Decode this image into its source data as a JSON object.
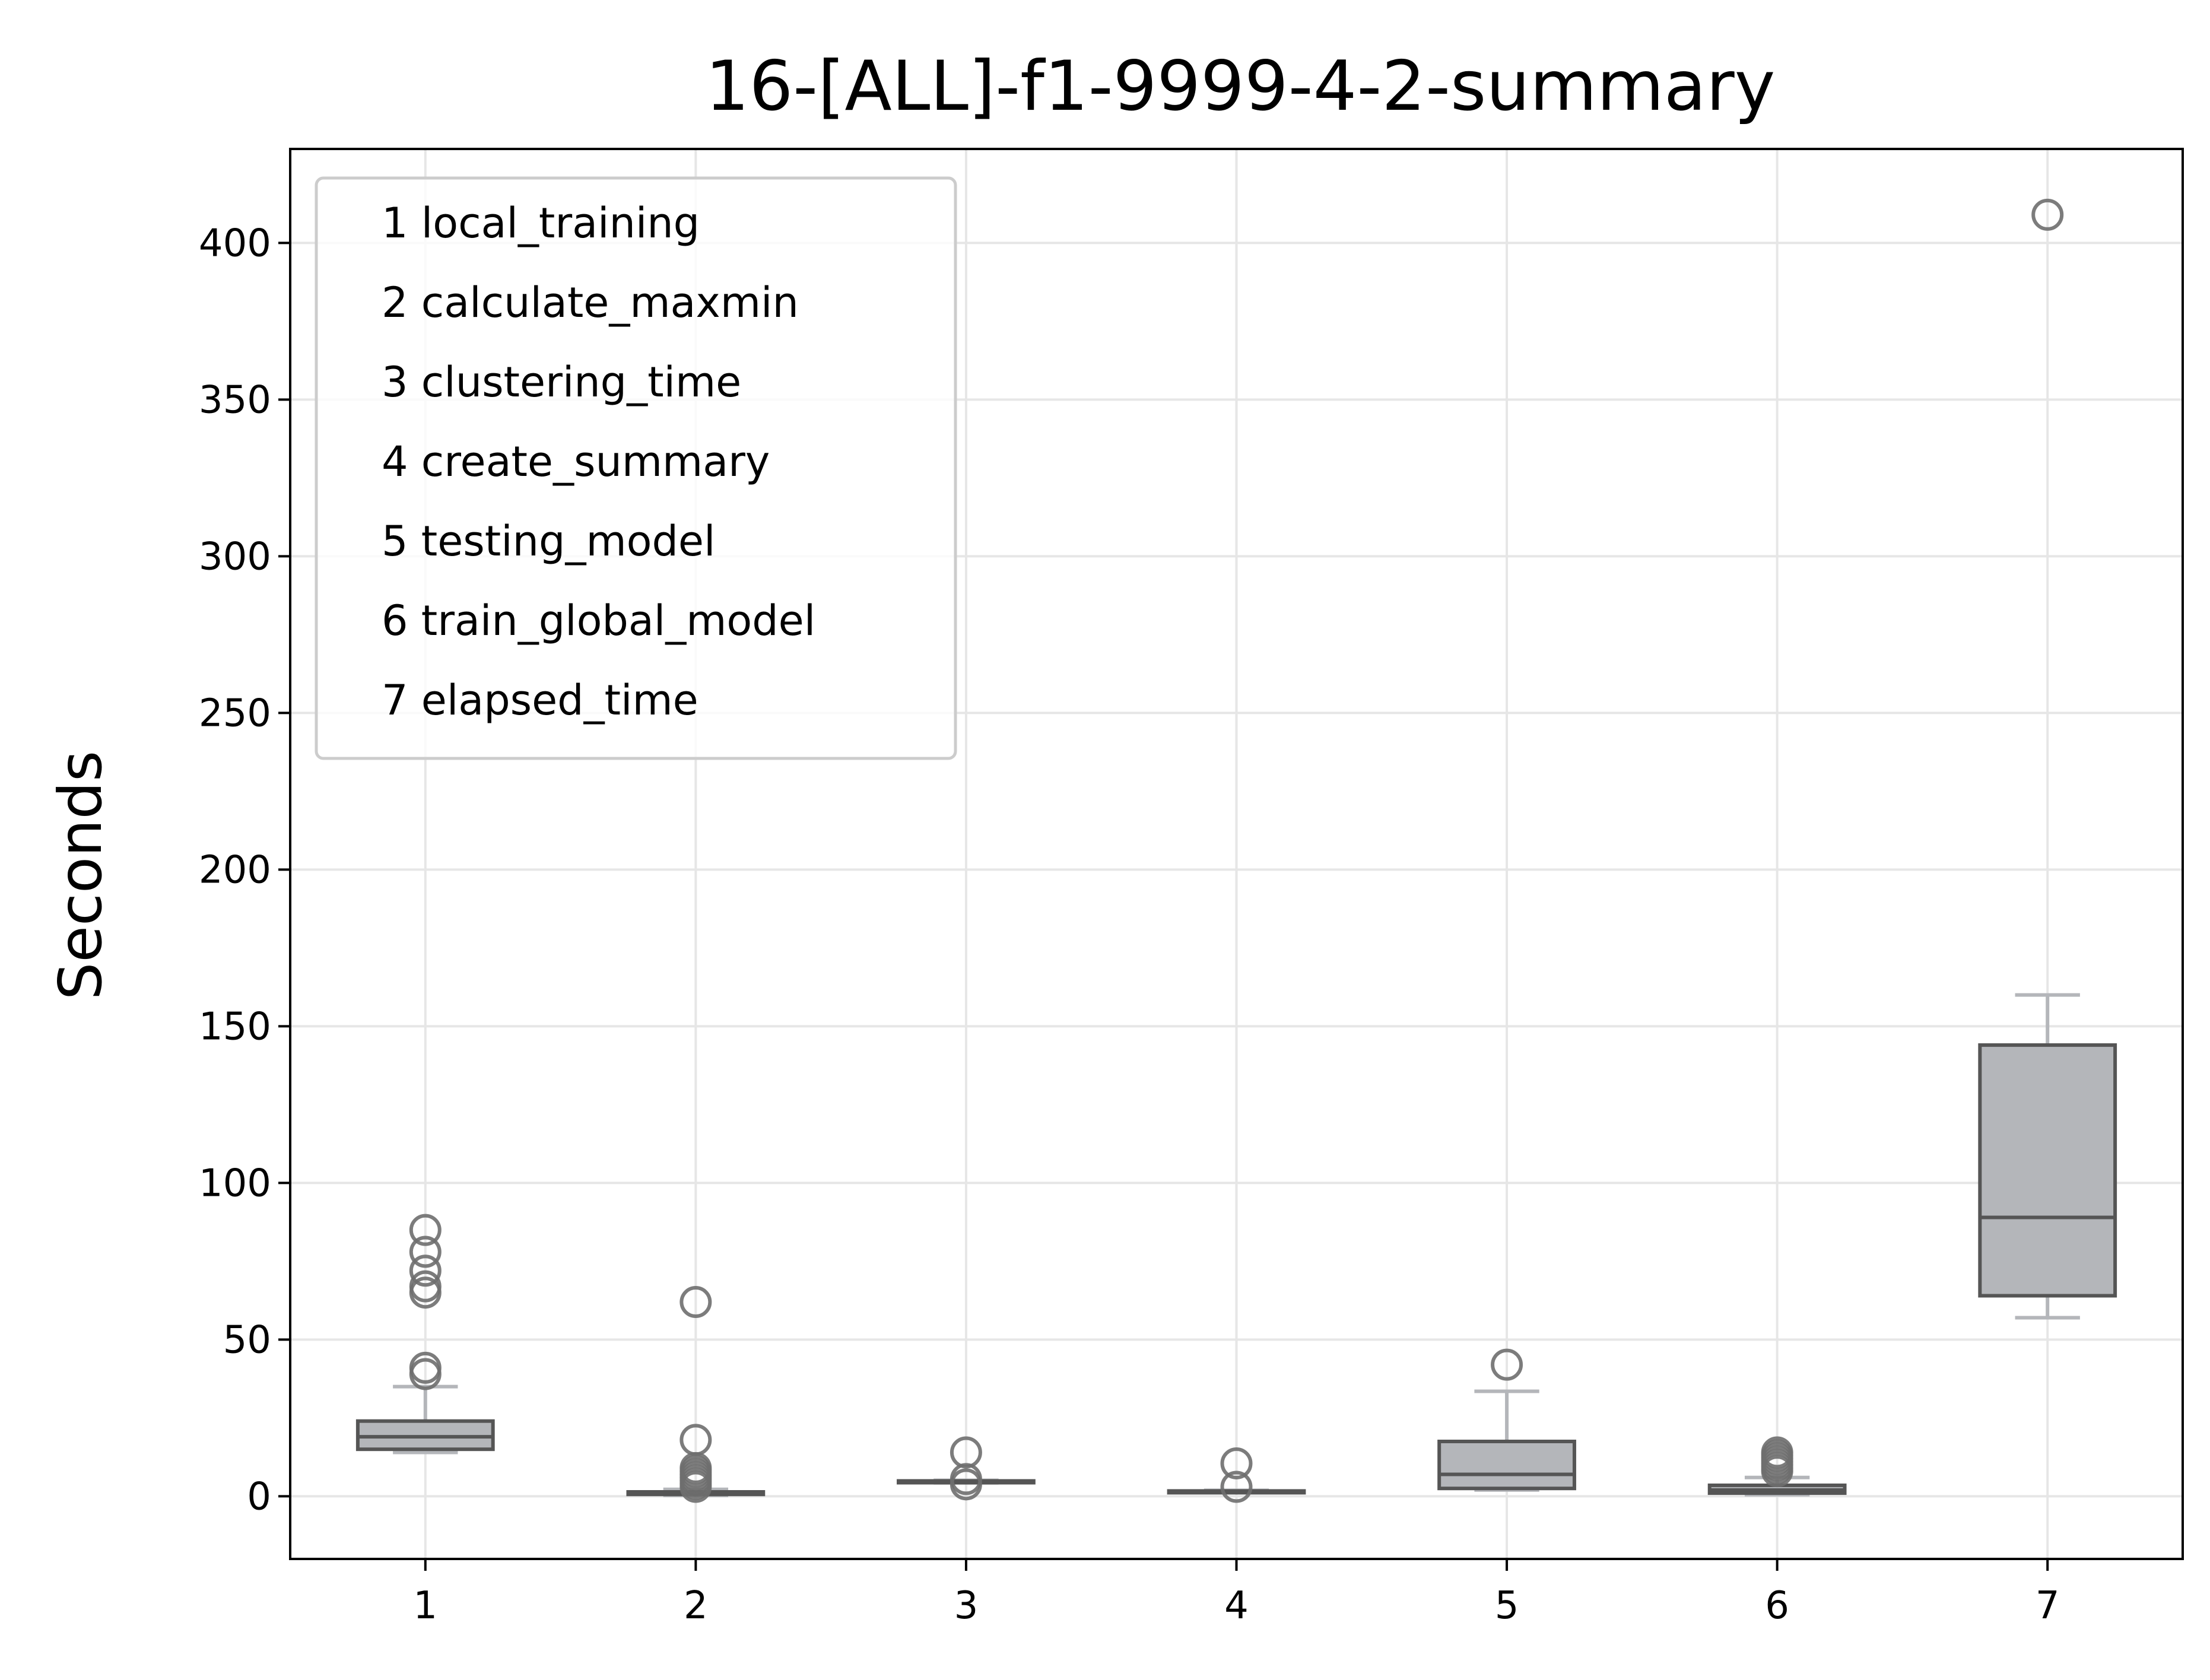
{
  "chart_data": {
    "type": "box",
    "title": "16-[ALL]-f1-9999-4-2-summary",
    "xlabel": "",
    "ylabel": "Seconds",
    "ylim": [
      -20,
      430
    ],
    "xlim": [
      0.5,
      7.5
    ],
    "yticks": [
      0,
      50,
      100,
      150,
      200,
      250,
      300,
      350,
      400
    ],
    "grid": true,
    "legend_position": "top-left",
    "legend": [
      "1 local_training",
      "2 calculate_maxmin",
      "3 clustering_time",
      "4 create_summary",
      "5 testing_model",
      "6 train_global_model",
      "7 elapsed_time"
    ],
    "colors": {
      "box_fill": "#b4b6ba",
      "box_edge": "#555555",
      "whisker": "#b4b6ba",
      "outlier_edge": "#6e6e6e",
      "grid": "#e6e6e6"
    },
    "categories": [
      "1",
      "2",
      "3",
      "4",
      "5",
      "6",
      "7"
    ],
    "boxes": [
      {
        "category": "1",
        "whislo": 14,
        "q1": 15,
        "median": 19,
        "q3": 24,
        "whishi": 35,
        "outliers": [
          39,
          41,
          65,
          67,
          72,
          78,
          85
        ]
      },
      {
        "category": "2",
        "whislo": 0.3,
        "q1": 0.6,
        "median": 1.0,
        "q3": 1.4,
        "whishi": 2.2,
        "outliers": [
          3,
          4,
          5,
          6,
          7,
          8,
          9,
          18,
          62
        ]
      },
      {
        "category": "3",
        "whislo": 4.3,
        "q1": 4.5,
        "median": 4.7,
        "q3": 4.9,
        "whishi": 5.1,
        "outliers": [
          3.8,
          5.5,
          14
        ]
      },
      {
        "category": "4",
        "whislo": 1.2,
        "q1": 1.4,
        "median": 1.5,
        "q3": 1.7,
        "whishi": 1.9,
        "outliers": [
          3,
          10.5
        ]
      },
      {
        "category": "5",
        "whislo": 2,
        "q1": 2.5,
        "median": 7,
        "q3": 17.5,
        "whishi": 33.5,
        "outliers": [
          42
        ]
      },
      {
        "category": "6",
        "whislo": 0.5,
        "q1": 1,
        "median": 2,
        "q3": 3.5,
        "whishi": 6,
        "outliers": [
          8,
          9,
          10,
          11,
          12,
          13,
          14
        ]
      },
      {
        "category": "7",
        "whislo": 57,
        "q1": 64,
        "median": 89,
        "q3": 144,
        "whishi": 160,
        "outliers": [
          409
        ]
      }
    ]
  }
}
